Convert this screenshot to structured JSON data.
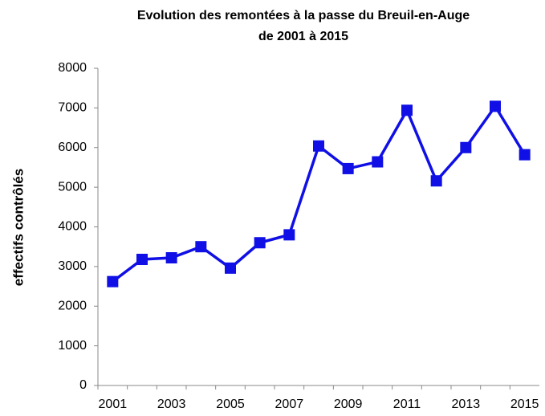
{
  "chart_data": {
    "type": "line",
    "title": [
      "Evolution des remontées à la passe du Breuil-en-Auge",
      "de 2001 à 2015"
    ],
    "y_label": "effectifs contrôlés",
    "categories": [
      "2001",
      null,
      "2003",
      null,
      "2005",
      null,
      "2007",
      null,
      "2009",
      null,
      "2011",
      null,
      "2013",
      null,
      "2015"
    ],
    "series": [
      {
        "name": "effectifs",
        "color": "#0f0fe6",
        "values": [
          2620,
          3180,
          3220,
          3500,
          2960,
          3600,
          3800,
          6040,
          5470,
          5640,
          6940,
          5160,
          6000,
          7040,
          5820
        ]
      }
    ],
    "ylim": [
      0,
      8000
    ],
    "yticks": [
      0,
      1000,
      2000,
      3000,
      4000,
      5000,
      6000,
      7000,
      8000
    ],
    "grid": false
  }
}
